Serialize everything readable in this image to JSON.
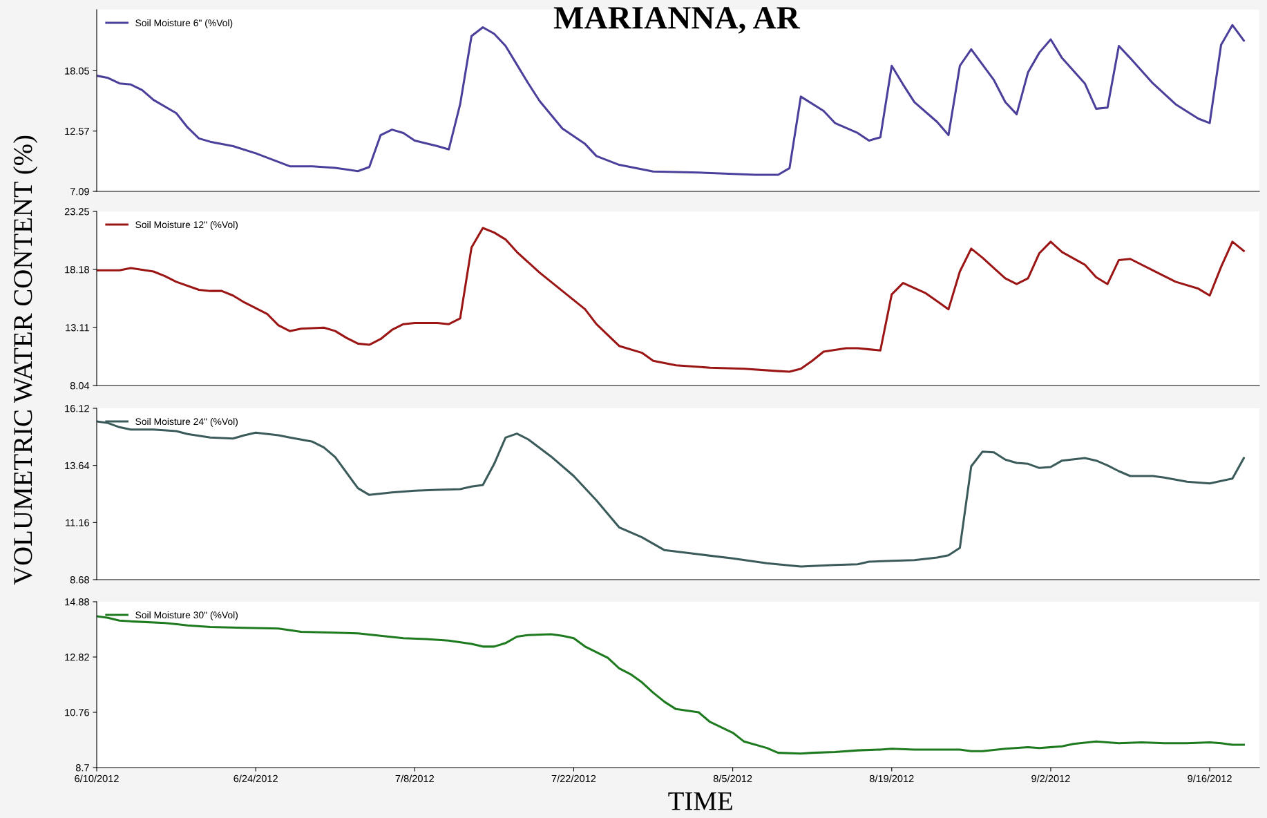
{
  "chart_data": [
    {
      "type": "line",
      "title": "MARIANNA, AR",
      "ylabel": "VOLUMETRIC WATER CONTENT (%)",
      "legend": "top left",
      "tick_labels": "y",
      "grid": false,
      "xlim": [
        "2012-06-10",
        "2012-09-20T09:00"
      ],
      "xticks": [
        {
          "value": "2012-06-10",
          "label": null
        },
        {
          "value": "2012-06-24",
          "label": null
        },
        {
          "value": "2012-07-08",
          "label": null
        },
        {
          "value": "2012-07-22",
          "label": null
        },
        {
          "value": "2012-08-05",
          "label": null
        },
        {
          "value": "2012-08-19",
          "label": null
        },
        {
          "value": "2012-09-02",
          "label": null
        },
        {
          "value": "2012-09-16",
          "label": null
        }
      ],
      "ylim": [
        7.09,
        23.6
      ],
      "yticks": [
        7.09,
        12.57,
        18.05
      ],
      "series": [
        {
          "name": "Soil Moisture 6\" (%Vol)",
          "color": "#4a3f9a",
          "x": [
            "2012-06-10",
            "2012-06-11",
            "2012-06-12",
            "2012-06-13",
            "2012-06-14",
            "2012-06-15",
            "2012-06-17",
            "2012-06-18",
            "2012-06-19",
            "2012-06-20",
            "2012-06-22",
            "2012-06-24",
            "2012-06-27",
            "2012-06-29",
            "2012-07-01",
            "2012-07-03",
            "2012-07-04",
            "2012-07-05",
            "2012-07-06",
            "2012-07-07",
            "2012-07-08",
            "2012-07-10",
            "2012-07-11",
            "2012-07-12",
            "2012-07-13",
            "2012-07-14",
            "2012-07-15",
            "2012-07-16",
            "2012-07-17",
            "2012-07-18",
            "2012-07-19",
            "2012-07-21",
            "2012-07-23",
            "2012-07-24",
            "2012-07-26",
            "2012-07-29",
            "2012-08-02",
            "2012-08-07",
            "2012-08-09",
            "2012-08-10",
            "2012-08-11",
            "2012-08-13",
            "2012-08-14",
            "2012-08-16",
            "2012-08-17",
            "2012-08-18",
            "2012-08-19",
            "2012-08-20",
            "2012-08-21",
            "2012-08-23",
            "2012-08-24",
            "2012-08-25",
            "2012-08-26",
            "2012-08-27",
            "2012-08-28",
            "2012-08-29",
            "2012-08-30",
            "2012-08-31",
            "2012-09-01",
            "2012-09-02",
            "2012-09-03",
            "2012-09-05",
            "2012-09-06",
            "2012-09-07",
            "2012-09-08",
            "2012-09-09",
            "2012-09-11",
            "2012-09-13",
            "2012-09-15",
            "2012-09-16",
            "2012-09-17",
            "2012-09-18",
            "2012-09-19"
          ],
          "values": [
            17.6,
            17.4,
            16.9,
            16.8,
            16.3,
            15.4,
            14.2,
            12.9,
            11.9,
            11.6,
            11.2,
            10.55,
            9.37,
            9.37,
            9.22,
            8.93,
            9.3,
            12.2,
            12.7,
            12.4,
            11.7,
            11.2,
            10.9,
            15.0,
            21.2,
            22.0,
            21.4,
            20.3,
            18.6,
            16.9,
            15.3,
            12.8,
            11.4,
            10.3,
            9.5,
            8.9,
            8.8,
            8.6,
            8.6,
            9.2,
            15.7,
            14.4,
            13.3,
            12.4,
            11.7,
            12.0,
            18.5,
            16.8,
            15.2,
            13.4,
            12.2,
            18.5,
            20.0,
            18.6,
            17.2,
            15.2,
            14.1,
            17.9,
            19.7,
            20.9,
            19.2,
            16.9,
            14.6,
            14.7,
            20.3,
            19.2,
            16.9,
            15.0,
            13.7,
            13.3,
            20.4,
            22.2,
            20.8
          ]
        }
      ]
    },
    {
      "type": "line",
      "legend": "top left",
      "tick_labels": "y",
      "grid": false,
      "xlim": [
        "2012-06-10",
        "2012-09-20T09:00"
      ],
      "xticks": [
        {
          "value": "2012-06-10",
          "label": null
        },
        {
          "value": "2012-06-24",
          "label": null
        },
        {
          "value": "2012-07-08",
          "label": null
        },
        {
          "value": "2012-07-22",
          "label": null
        },
        {
          "value": "2012-08-05",
          "label": null
        },
        {
          "value": "2012-08-19",
          "label": null
        },
        {
          "value": "2012-09-02",
          "label": null
        },
        {
          "value": "2012-09-16",
          "label": null
        }
      ],
      "ylim": [
        8.04,
        23.25
      ],
      "yticks": [
        8.04,
        13.11,
        18.18,
        23.25
      ],
      "series": [
        {
          "name": "Soil Moisture 12\" (%Vol)",
          "color": "#9b1515",
          "x": [
            "2012-06-10",
            "2012-06-12",
            "2012-06-13",
            "2012-06-15",
            "2012-06-16",
            "2012-06-17",
            "2012-06-19",
            "2012-06-20",
            "2012-06-21",
            "2012-06-22",
            "2012-06-23",
            "2012-06-25",
            "2012-06-26",
            "2012-06-27",
            "2012-06-28",
            "2012-06-30",
            "2012-07-01",
            "2012-07-02",
            "2012-07-03",
            "2012-07-04",
            "2012-07-05",
            "2012-07-06",
            "2012-07-07",
            "2012-07-08",
            "2012-07-10",
            "2012-07-11",
            "2012-07-12",
            "2012-07-13",
            "2012-07-14",
            "2012-07-15",
            "2012-07-16",
            "2012-07-17",
            "2012-07-19",
            "2012-07-21",
            "2012-07-23",
            "2012-07-24",
            "2012-07-26",
            "2012-07-28",
            "2012-07-29",
            "2012-07-31",
            "2012-08-03",
            "2012-08-06",
            "2012-08-09",
            "2012-08-10",
            "2012-08-11",
            "2012-08-12",
            "2012-08-13",
            "2012-08-15",
            "2012-08-16",
            "2012-08-17",
            "2012-08-18",
            "2012-08-19",
            "2012-08-20",
            "2012-08-22",
            "2012-08-23",
            "2012-08-24",
            "2012-08-25",
            "2012-08-26",
            "2012-08-27",
            "2012-08-28",
            "2012-08-29",
            "2012-08-30",
            "2012-08-31",
            "2012-09-01",
            "2012-09-02",
            "2012-09-03",
            "2012-09-05",
            "2012-09-06",
            "2012-09-07",
            "2012-09-08",
            "2012-09-09",
            "2012-09-11",
            "2012-09-13",
            "2012-09-15",
            "2012-09-16",
            "2012-09-17",
            "2012-09-18",
            "2012-09-19"
          ],
          "values": [
            18.1,
            18.1,
            18.3,
            18.0,
            17.6,
            17.1,
            16.4,
            16.3,
            16.3,
            15.9,
            15.3,
            14.3,
            13.3,
            12.8,
            13.0,
            13.1,
            12.8,
            12.2,
            11.7,
            11.6,
            12.1,
            12.9,
            13.4,
            13.5,
            13.5,
            13.4,
            13.9,
            20.1,
            21.8,
            21.4,
            20.8,
            19.7,
            17.9,
            16.3,
            14.7,
            13.4,
            11.5,
            10.9,
            10.2,
            9.8,
            9.6,
            9.5,
            9.3,
            9.25,
            9.5,
            10.2,
            11.0,
            11.3,
            11.3,
            11.2,
            11.1,
            16.0,
            17.0,
            16.1,
            15.4,
            14.7,
            18.0,
            20.0,
            19.2,
            18.3,
            17.4,
            16.9,
            17.4,
            19.6,
            20.6,
            19.7,
            18.6,
            17.5,
            16.9,
            19.0,
            19.1,
            18.1,
            17.1,
            16.5,
            15.9,
            18.4,
            20.6,
            19.8
          ]
        }
      ]
    },
    {
      "type": "line",
      "legend": "top left",
      "tick_labels": "y",
      "grid": false,
      "xlim": [
        "2012-06-10",
        "2012-09-20T09:00"
      ],
      "xticks": [
        {
          "value": "2012-06-10",
          "label": null
        },
        {
          "value": "2012-06-24",
          "label": null
        },
        {
          "value": "2012-07-08",
          "label": null
        },
        {
          "value": "2012-07-22",
          "label": null
        },
        {
          "value": "2012-08-05",
          "label": null
        },
        {
          "value": "2012-08-19",
          "label": null
        },
        {
          "value": "2012-09-02",
          "label": null
        },
        {
          "value": "2012-09-16",
          "label": null
        }
      ],
      "ylim": [
        8.68,
        16.12
      ],
      "yticks": [
        8.68,
        11.16,
        13.64,
        16.12
      ],
      "series": [
        {
          "name": "Soil Moisture 24\" (%Vol)",
          "color": "#3b5a5a",
          "x": [
            "2012-06-10",
            "2012-06-11",
            "2012-06-12",
            "2012-06-13",
            "2012-06-15",
            "2012-06-17",
            "2012-06-18",
            "2012-06-20",
            "2012-06-22",
            "2012-06-23",
            "2012-06-24",
            "2012-06-26",
            "2012-06-27",
            "2012-06-29",
            "2012-06-30",
            "2012-07-01",
            "2012-07-03",
            "2012-07-04",
            "2012-07-06",
            "2012-07-08",
            "2012-07-10",
            "2012-07-12",
            "2012-07-13",
            "2012-07-14",
            "2012-07-15",
            "2012-07-16",
            "2012-07-17",
            "2012-07-18",
            "2012-07-20",
            "2012-07-22",
            "2012-07-24",
            "2012-07-26",
            "2012-07-28",
            "2012-07-30",
            "2012-08-02",
            "2012-08-05",
            "2012-08-08",
            "2012-08-11",
            "2012-08-14",
            "2012-08-16",
            "2012-08-17",
            "2012-08-19",
            "2012-08-21",
            "2012-08-23",
            "2012-08-24",
            "2012-08-25",
            "2012-08-26",
            "2012-08-27",
            "2012-08-28",
            "2012-08-29",
            "2012-08-30",
            "2012-08-31",
            "2012-09-01",
            "2012-09-02",
            "2012-09-03",
            "2012-09-05",
            "2012-09-06",
            "2012-09-07",
            "2012-09-08",
            "2012-09-09",
            "2012-09-11",
            "2012-09-12",
            "2012-09-14",
            "2012-09-16",
            "2012-09-18",
            "2012-09-19"
          ],
          "values": [
            15.55,
            15.48,
            15.3,
            15.2,
            15.2,
            15.13,
            15.0,
            14.85,
            14.81,
            14.95,
            15.06,
            14.95,
            14.85,
            14.67,
            14.42,
            14.0,
            12.65,
            12.36,
            12.47,
            12.54,
            12.58,
            12.61,
            12.72,
            12.79,
            13.71,
            14.85,
            15.02,
            14.77,
            14.03,
            13.18,
            12.12,
            10.95,
            10.52,
            9.96,
            9.78,
            9.6,
            9.39,
            9.25,
            9.32,
            9.35,
            9.46,
            9.5,
            9.53,
            9.64,
            9.74,
            10.06,
            13.6,
            14.24,
            14.21,
            13.89,
            13.75,
            13.71,
            13.53,
            13.57,
            13.85,
            13.96,
            13.85,
            13.64,
            13.39,
            13.18,
            13.18,
            13.11,
            12.93,
            12.86,
            13.07,
            13.96
          ]
        }
      ]
    },
    {
      "type": "line",
      "xlabel": "TIME",
      "legend": "top left",
      "grid": false,
      "xlim": [
        "2012-06-10",
        "2012-09-20T09:00"
      ],
      "xticks": [
        {
          "value": "2012-06-10",
          "label": "6/10/2012"
        },
        {
          "value": "2012-06-24",
          "label": "6/24/2012"
        },
        {
          "value": "2012-07-08",
          "label": "7/8/2012"
        },
        {
          "value": "2012-07-22",
          "label": "7/22/2012"
        },
        {
          "value": "2012-08-05",
          "label": "8/5/2012"
        },
        {
          "value": "2012-08-19",
          "label": "8/19/2012"
        },
        {
          "value": "2012-09-02",
          "label": "9/2/2012"
        },
        {
          "value": "2012-09-16",
          "label": "9/16/2012"
        }
      ],
      "ylim": [
        8.7,
        14.88
      ],
      "yticks": [
        8.7,
        10.76,
        12.82,
        14.88
      ],
      "series": [
        {
          "name": "Soil Moisture 30\" (%Vol)",
          "color": "#1e7a1e",
          "x": [
            "2012-06-10",
            "2012-06-11",
            "2012-06-12",
            "2012-06-13",
            "2012-06-16",
            "2012-06-18",
            "2012-06-20",
            "2012-06-23",
            "2012-06-26",
            "2012-06-28",
            "2012-07-01",
            "2012-07-03",
            "2012-07-05",
            "2012-07-07",
            "2012-07-09",
            "2012-07-11",
            "2012-07-13",
            "2012-07-14",
            "2012-07-15",
            "2012-07-16",
            "2012-07-17",
            "2012-07-18",
            "2012-07-20",
            "2012-07-21",
            "2012-07-22",
            "2012-07-23",
            "2012-07-25",
            "2012-07-26",
            "2012-07-27",
            "2012-07-28",
            "2012-07-29",
            "2012-07-30",
            "2012-07-31",
            "2012-08-02",
            "2012-08-03",
            "2012-08-05",
            "2012-08-06",
            "2012-08-08",
            "2012-08-09",
            "2012-08-11",
            "2012-08-12",
            "2012-08-14",
            "2012-08-16",
            "2012-08-18",
            "2012-08-19",
            "2012-08-21",
            "2012-08-23",
            "2012-08-25",
            "2012-08-26",
            "2012-08-27",
            "2012-08-29",
            "2012-08-31",
            "2012-09-01",
            "2012-09-03",
            "2012-09-04",
            "2012-09-06",
            "2012-09-08",
            "2012-09-10",
            "2012-09-12",
            "2012-09-14",
            "2012-09-16",
            "2012-09-17",
            "2012-09-18",
            "2012-09-19"
          ],
          "values": [
            14.34,
            14.28,
            14.18,
            14.15,
            14.09,
            14.0,
            13.94,
            13.91,
            13.88,
            13.76,
            13.73,
            13.7,
            13.61,
            13.52,
            13.49,
            13.43,
            13.31,
            13.21,
            13.21,
            13.34,
            13.58,
            13.64,
            13.67,
            13.61,
            13.52,
            13.21,
            12.79,
            12.4,
            12.18,
            11.88,
            11.49,
            11.15,
            10.88,
            10.76,
            10.4,
            10.0,
            9.67,
            9.43,
            9.25,
            9.22,
            9.25,
            9.28,
            9.34,
            9.37,
            9.4,
            9.37,
            9.37,
            9.37,
            9.31,
            9.31,
            9.4,
            9.46,
            9.43,
            9.49,
            9.58,
            9.67,
            9.61,
            9.64,
            9.61,
            9.61,
            9.64,
            9.61,
            9.55,
            9.55
          ]
        }
      ]
    }
  ]
}
